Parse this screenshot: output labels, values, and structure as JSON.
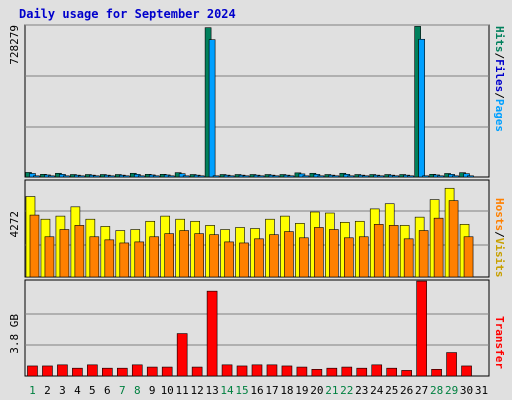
{
  "title": "Daily usage for September 2024",
  "chart_data": [
    {
      "type": "bar",
      "panel": "hits-files-pages",
      "y_tick_label": "728279",
      "ylim": [
        0,
        735000
      ],
      "grid": true,
      "categories": [
        "1",
        "2",
        "3",
        "4",
        "5",
        "6",
        "7",
        "8",
        "9",
        "10",
        "11",
        "12",
        "13",
        "14",
        "15",
        "16",
        "17",
        "18",
        "19",
        "20",
        "21",
        "22",
        "23",
        "24",
        "25",
        "26",
        "27",
        "28",
        "29",
        "30",
        "31"
      ],
      "series": [
        {
          "name": "Hits",
          "color": "#00805c",
          "values": [
            22000,
            13000,
            18000,
            12000,
            12000,
            12000,
            12000,
            18000,
            13000,
            13000,
            21000,
            12000,
            722000,
            12000,
            12000,
            12000,
            12000,
            12000,
            20000,
            18000,
            12000,
            18000,
            12000,
            12000,
            12000,
            12000,
            728279,
            13000,
            17000,
            21000,
            null
          ]
        },
        {
          "name": "Files",
          "color": "#00a0ff",
          "values": [
            17000,
            10000,
            13000,
            9000,
            9000,
            9000,
            9000,
            13000,
            10000,
            10000,
            16000,
            9000,
            664000,
            9000,
            9000,
            9000,
            9000,
            9000,
            15000,
            13000,
            9000,
            13000,
            9000,
            9000,
            9000,
            9000,
            666000,
            10000,
            13000,
            16000,
            null
          ]
        },
        {
          "name": "Pages",
          "color": "#00a0ff",
          "values": [
            0,
            0,
            0,
            0,
            0,
            0,
            0,
            0,
            0,
            0,
            0,
            0,
            0,
            0,
            0,
            0,
            0,
            0,
            0,
            0,
            0,
            0,
            0,
            0,
            0,
            0,
            0,
            0,
            0,
            0,
            null
          ]
        }
      ]
    },
    {
      "type": "bar",
      "panel": "hosts-visits",
      "y_tick_label": "4272",
      "ylim": [
        0,
        4700
      ],
      "grid": true,
      "categories": [
        "1",
        "2",
        "3",
        "4",
        "5",
        "6",
        "7",
        "8",
        "9",
        "10",
        "11",
        "12",
        "13",
        "14",
        "15",
        "16",
        "17",
        "18",
        "19",
        "20",
        "21",
        "22",
        "23",
        "24",
        "25",
        "26",
        "27",
        "28",
        "29",
        "30",
        "31"
      ],
      "series": [
        {
          "name": "Hosts",
          "color": "#ffff00",
          "values": [
            3900,
            2800,
            2950,
            3400,
            2800,
            2450,
            2250,
            2300,
            2700,
            2950,
            2800,
            2700,
            2500,
            2300,
            2400,
            2350,
            2800,
            2950,
            2600,
            3150,
            3100,
            2650,
            2700,
            3300,
            3550,
            2500,
            2900,
            3750,
            4300,
            2550,
            null
          ]
        },
        {
          "name": "Visits",
          "color": "#ff8000",
          "values": [
            3000,
            1950,
            2300,
            2500,
            1950,
            1800,
            1650,
            1700,
            1950,
            2100,
            2250,
            2100,
            2050,
            1700,
            1650,
            1850,
            2050,
            2200,
            1900,
            2400,
            2300,
            1900,
            1950,
            2550,
            2500,
            1850,
            2250,
            2850,
            3700,
            1950,
            null
          ]
        }
      ]
    },
    {
      "type": "bar",
      "panel": "transfer",
      "y_tick_label": "3.8 GB",
      "ylim": [
        0,
        4.3
      ],
      "grid": true,
      "categories": [
        "1",
        "2",
        "3",
        "4",
        "5",
        "6",
        "7",
        "8",
        "9",
        "10",
        "11",
        "12",
        "13",
        "14",
        "15",
        "16",
        "17",
        "18",
        "19",
        "20",
        "21",
        "22",
        "23",
        "24",
        "25",
        "26",
        "27",
        "28",
        "29",
        "30",
        "31"
      ],
      "series": [
        {
          "name": "Transfer",
          "color": "#ff0000",
          "values": [
            0.45,
            0.45,
            0.5,
            0.35,
            0.5,
            0.35,
            0.35,
            0.5,
            0.4,
            0.4,
            1.9,
            0.4,
            3.8,
            0.5,
            0.45,
            0.5,
            0.5,
            0.45,
            0.4,
            0.3,
            0.35,
            0.4,
            0.35,
            0.5,
            0.35,
            0.25,
            4.25,
            0.3,
            1.05,
            0.45,
            null
          ]
        }
      ]
    }
  ],
  "axis_labels": {
    "hits": "Hits",
    "files": "Files",
    "pages": "Pages",
    "hosts": "Hosts",
    "visits": "Visits",
    "transfer": "Transfer",
    "slash": "/"
  },
  "weekend_days": [
    "1",
    "7",
    "8",
    "14",
    "15",
    "21",
    "22",
    "28",
    "29"
  ],
  "colors": {
    "title": "#0000cc",
    "weekday_label": "#000000",
    "weekend_label": "#008040"
  }
}
